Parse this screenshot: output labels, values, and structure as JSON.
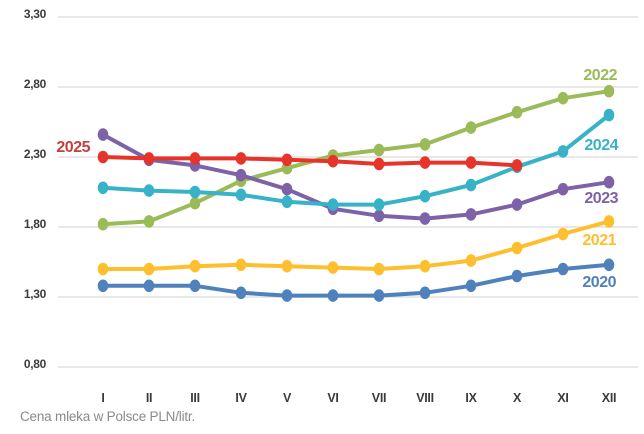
{
  "chart_data": {
    "type": "line",
    "title": "",
    "caption": "Cena mleka w Polsce PLN/litr.",
    "xlabel": "",
    "ylabel": "",
    "categories": [
      "I",
      "II",
      "III",
      "IV",
      "V",
      "VI",
      "VII",
      "VIII",
      "IX",
      "X",
      "XI",
      "XII"
    ],
    "ylim": [
      0.8,
      3.3
    ],
    "grid": "horizontal-only",
    "gridline_color": "#d9d9d9",
    "legend_position": "inline-line-labels",
    "y_ticks": [
      {
        "label": "3,30",
        "value": 3.3
      },
      {
        "label": "2,80",
        "value": 2.8
      },
      {
        "label": "2,30",
        "value": 2.3
      },
      {
        "label": "1,80",
        "value": 1.8
      },
      {
        "label": "1,30",
        "value": 1.3
      },
      {
        "label": "0,80",
        "value": 0.8
      }
    ],
    "series": [
      {
        "name": "2020",
        "color": "#4f81bd",
        "label_color": "#4f81bd",
        "values": [
          1.38,
          1.38,
          1.38,
          1.33,
          1.31,
          1.31,
          1.31,
          1.33,
          1.38,
          1.45,
          1.5,
          1.53
        ]
      },
      {
        "name": "2021",
        "color": "#fdbf2d",
        "label_color": "#fdbf2d",
        "values": [
          1.5,
          1.5,
          1.52,
          1.53,
          1.52,
          1.51,
          1.5,
          1.52,
          1.56,
          1.65,
          1.75,
          1.84
        ]
      },
      {
        "name": "2022",
        "color": "#9bba58",
        "label_color": "#9bba58",
        "values": [
          1.82,
          1.84,
          1.97,
          2.13,
          2.22,
          2.31,
          2.35,
          2.39,
          2.51,
          2.62,
          2.72,
          2.77
        ]
      },
      {
        "name": "2023",
        "color": "#7d62a8",
        "label_color": "#7d62a8",
        "values": [
          2.46,
          2.28,
          2.24,
          2.17,
          2.07,
          1.93,
          1.88,
          1.86,
          1.89,
          1.96,
          2.07,
          2.12
        ]
      },
      {
        "name": "2024",
        "color": "#38b2c7",
        "label_color": "#38b2c7",
        "values": [
          2.08,
          2.06,
          2.05,
          2.03,
          1.98,
          1.96,
          1.96,
          2.02,
          2.1,
          2.23,
          2.34,
          2.6
        ]
      },
      {
        "name": "2025",
        "color": "#e7342b",
        "label_color": "#c2413b",
        "values": [
          2.3,
          2.29,
          2.29,
          2.29,
          2.28,
          2.27,
          2.25,
          2.26,
          2.26,
          2.24,
          null,
          null
        ]
      }
    ]
  }
}
